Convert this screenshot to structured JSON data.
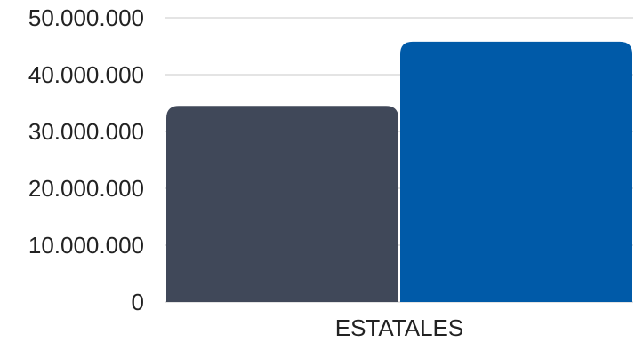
{
  "chart_data": {
    "type": "bar",
    "categories": [
      "ESTATALES"
    ],
    "series": [
      {
        "values": [
          34500000
        ],
        "color": "#404859"
      },
      {
        "values": [
          45800000
        ],
        "color": "#005aa8"
      }
    ],
    "ylim": [
      0,
      50000000
    ],
    "y_ticks": [
      0,
      10000000,
      20000000,
      30000000,
      40000000,
      50000000
    ],
    "y_tick_labels": [
      "0",
      "10.000.000",
      "20.000.000",
      "30.000.000",
      "40.000.000",
      "50.000.000"
    ],
    "grid": true,
    "legend": "none"
  }
}
